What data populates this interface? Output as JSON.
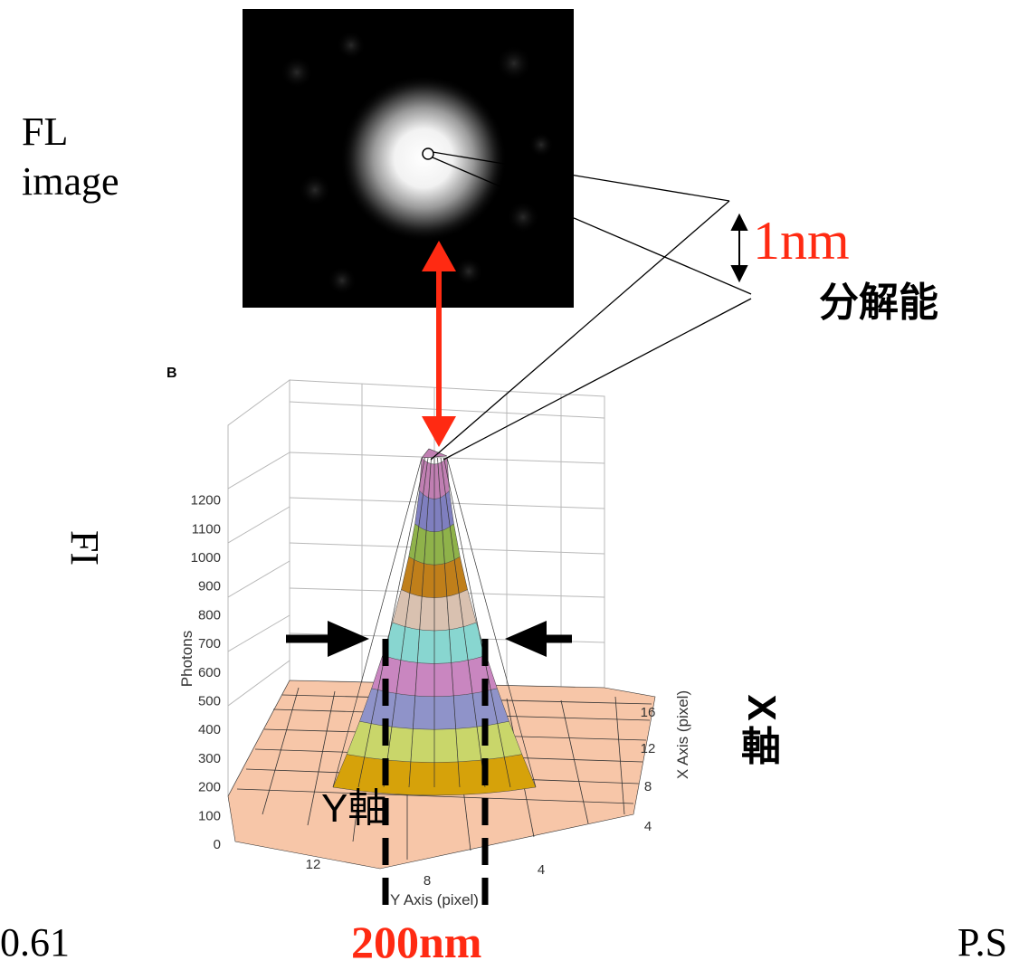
{
  "fl_label": {
    "line1": "FL",
    "line2": "image"
  },
  "resolution": {
    "value": "1nm",
    "label": "分解能"
  },
  "fi_label": "FI",
  "x_axis_label": {
    "x": "X",
    "jiku": "軸"
  },
  "y_axis_label": "Y軸",
  "fwhm": "200nm",
  "formula_fragment": "0.61",
  "reference_fragment": "P.S",
  "plot": {
    "panel_letter": "B",
    "z_axis_title": "Photons",
    "z_ticks": [
      "0",
      "100",
      "200",
      "300",
      "400",
      "500",
      "600",
      "700",
      "800",
      "900",
      "1000",
      "1100",
      "1200"
    ],
    "x_axis_title": "X Axis (pixel)",
    "x_ticks": [
      "4",
      "8",
      "12",
      "16"
    ],
    "y_axis_title": "Y Axis (pixel)",
    "y_ticks": [
      "12",
      "8",
      "4"
    ]
  },
  "colors": {
    "accent_red": "#ff2a12",
    "surface_base": "#f7c6a8",
    "bands": [
      "#d6a20a",
      "#c9d66a",
      "#8f93c9",
      "#c986c0",
      "#88d6d0",
      "#d9c1b0",
      "#c07f1a",
      "#8fb24a",
      "#7f7fbf",
      "#c07fb2"
    ]
  }
}
